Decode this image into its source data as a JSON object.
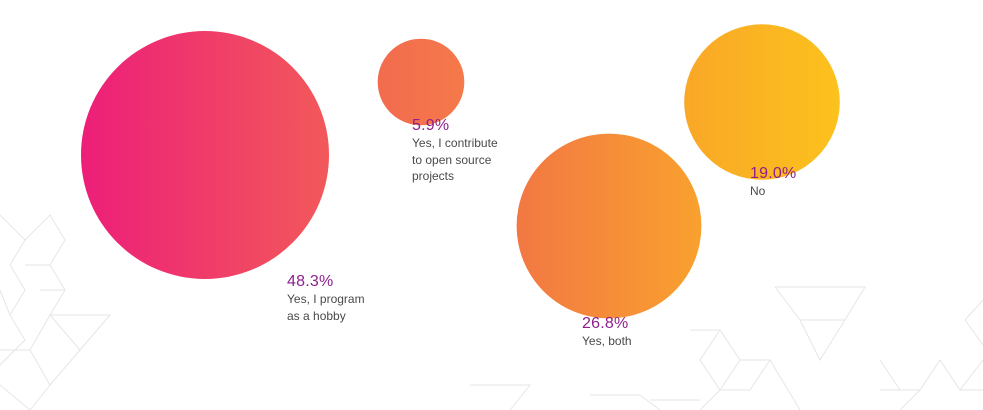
{
  "chart_data": {
    "type": "bubble",
    "title": "",
    "points": [
      {
        "value": "48.3%",
        "percent": 48.3,
        "label": "Yes, I program\nas a hobby",
        "color_start": "#ed1e79",
        "color_end": "#f2595a"
      },
      {
        "value": "5.9%",
        "percent": 5.9,
        "label": "Yes, I contribute\nto open source\nprojects",
        "color_start": "#f26b4e",
        "color_end": "#f5794a"
      },
      {
        "value": "26.8%",
        "percent": 26.8,
        "label": "Yes, both",
        "color_start": "#f27843",
        "color_end": "#f9a12e"
      },
      {
        "value": "19.0%",
        "percent": 19.0,
        "label": "No",
        "color_start": "#f9a727",
        "color_end": "#fcc21d"
      }
    ]
  },
  "colors": {
    "value_text": "#8e1f8c",
    "label_text": "#4a4a4a",
    "pattern_stroke": "#e6e6e6"
  }
}
